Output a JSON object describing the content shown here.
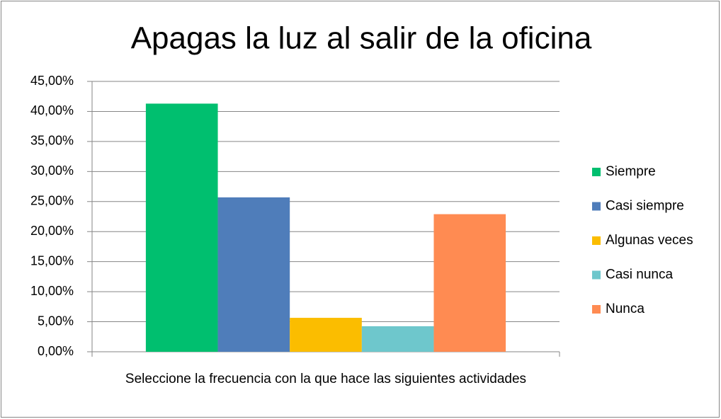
{
  "chart_data": {
    "type": "bar",
    "title": "Apagas la luz al salir de la oficina",
    "categories": [
      "Seleccione la frecuencia con la que hace las siguientes actividades"
    ],
    "series": [
      {
        "name": "Siempre",
        "color": "#00bf6f",
        "values": [
          41.3
        ]
      },
      {
        "name": "Casi siempre",
        "color": "#4f7dba",
        "values": [
          25.7
        ]
      },
      {
        "name": "Algunas veces",
        "color": "#fbbd00",
        "values": [
          5.65
        ]
      },
      {
        "name": "Casi nunca",
        "color": "#6ec7cc",
        "values": [
          4.25
        ]
      },
      {
        "name": "Nunca",
        "color": "#ff8b52",
        "values": [
          22.9
        ]
      }
    ],
    "ylim": [
      0,
      45
    ],
    "yticks": [
      {
        "value": 0,
        "label": "0,00%"
      },
      {
        "value": 5,
        "label": "5,00%"
      },
      {
        "value": 10,
        "label": "10,00%"
      },
      {
        "value": 15,
        "label": "15,00%"
      },
      {
        "value": 20,
        "label": "20,00%"
      },
      {
        "value": 25,
        "label": "25,00%"
      },
      {
        "value": 30,
        "label": "30,00%"
      },
      {
        "value": 35,
        "label": "35,00%"
      },
      {
        "value": 40,
        "label": "40,00%"
      },
      {
        "value": 45,
        "label": "45,00%"
      }
    ],
    "grid": true,
    "legend": "right"
  }
}
